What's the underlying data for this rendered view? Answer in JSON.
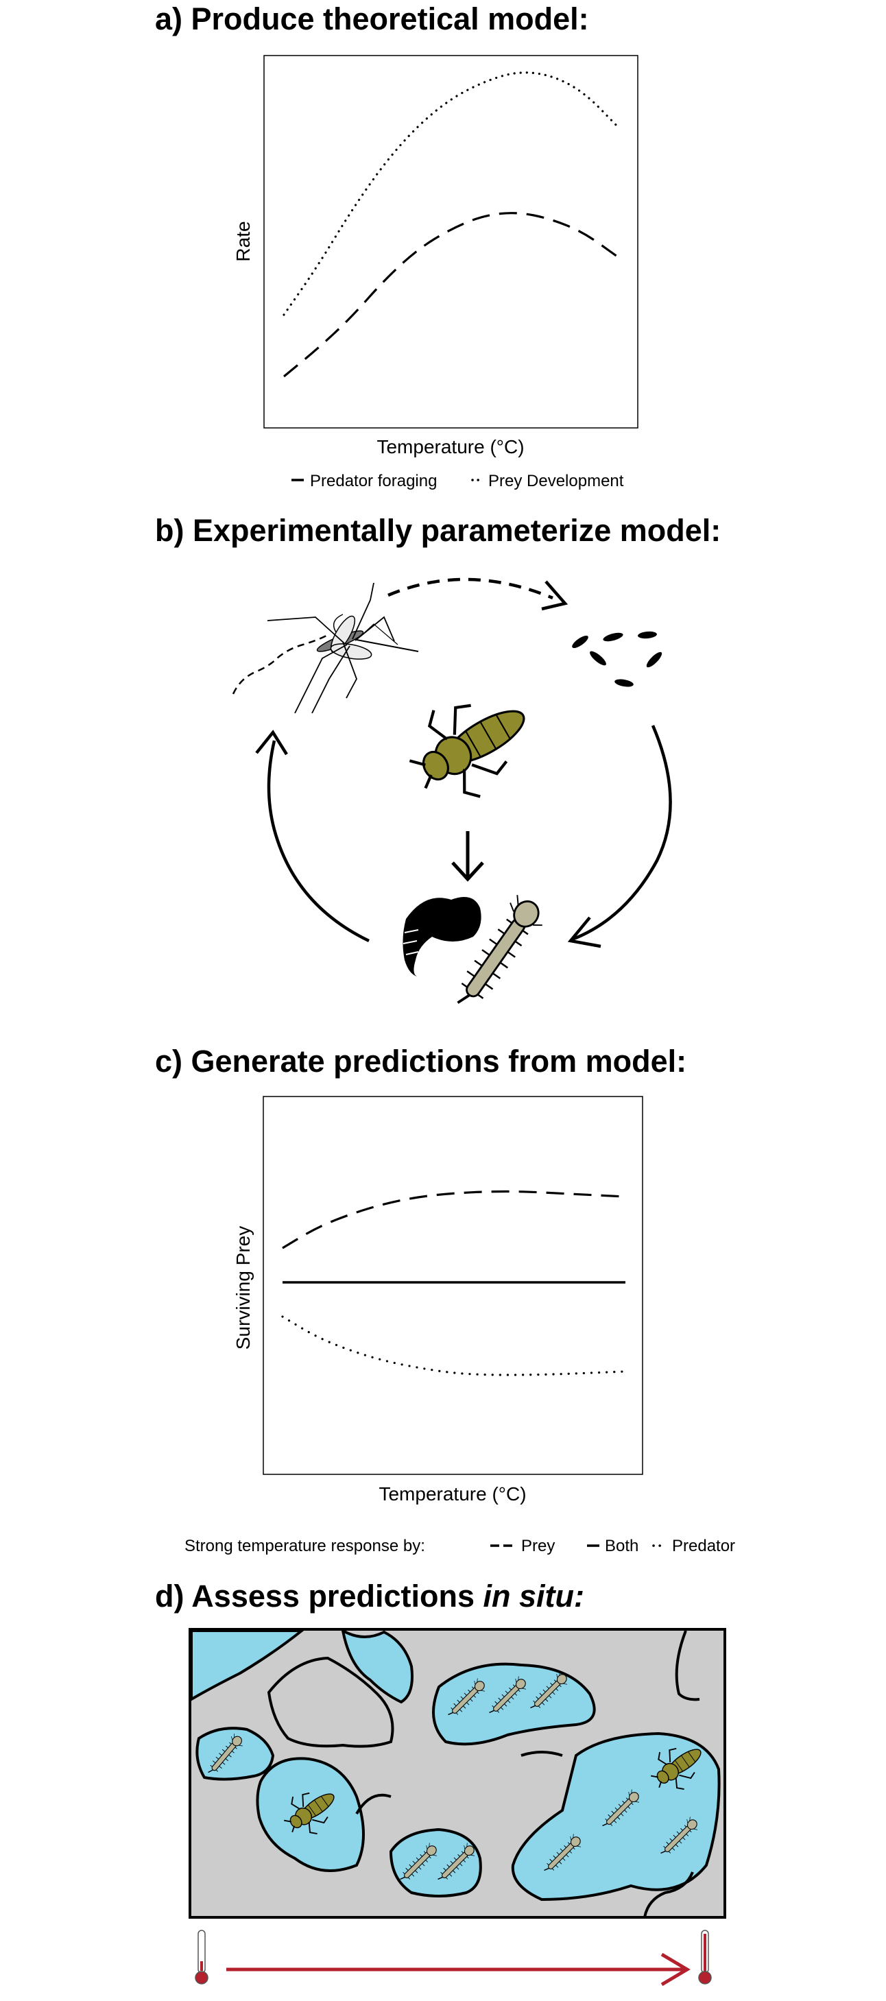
{
  "panel_a": {
    "heading": "a) Produce theoretical model:",
    "chart_data": {
      "type": "line",
      "xlabel": "Temperature (°C)",
      "ylabel": "Rate",
      "series": [
        {
          "name": "Predator foraging",
          "style": "dashed",
          "x": [
            0,
            1,
            2,
            3,
            4,
            5,
            6,
            7,
            8,
            9,
            10
          ],
          "values": [
            0.1,
            0.18,
            0.27,
            0.38,
            0.47,
            0.53,
            0.57,
            0.58,
            0.56,
            0.52,
            0.45
          ]
        },
        {
          "name": "Prey Development",
          "style": "dotted",
          "x": [
            0,
            1,
            2,
            3,
            4,
            5,
            6,
            7,
            8,
            9,
            10
          ],
          "values": [
            0.28,
            0.42,
            0.58,
            0.72,
            0.83,
            0.91,
            0.96,
            0.99,
            0.98,
            0.93,
            0.83
          ]
        }
      ],
      "legend": [
        "Predator foraging",
        "Prey Development"
      ],
      "legend_placement": "bottom"
    }
  },
  "panel_b": {
    "heading": "b) Experimentally parameterize model:",
    "organisms": [
      "mosquito-adult",
      "mosquito-eggs",
      "dragonfly-nymph",
      "mosquito-pupa",
      "mosquito-larva"
    ],
    "colors": {
      "nymph": "#8f8b2c",
      "larva": "#b9b69a"
    }
  },
  "panel_c": {
    "heading": "c) Generate predictions from model:",
    "chart_data": {
      "type": "line",
      "xlabel": "Temperature (°C)",
      "ylabel": "Surviving Prey",
      "series": [
        {
          "name": "Prey",
          "style": "dashed",
          "x": [
            0,
            1,
            2,
            3,
            4,
            5,
            6,
            7,
            8,
            9,
            10
          ],
          "values": [
            0.6,
            0.66,
            0.7,
            0.73,
            0.75,
            0.76,
            0.765,
            0.765,
            0.76,
            0.755,
            0.75
          ]
        },
        {
          "name": "Both",
          "style": "solid",
          "x": [
            0,
            10
          ],
          "values": [
            0.5,
            0.5
          ]
        },
        {
          "name": "Predator",
          "style": "dotted",
          "x": [
            0,
            1,
            2,
            3,
            4,
            5,
            6,
            7,
            8,
            9,
            10
          ],
          "values": [
            0.4,
            0.34,
            0.3,
            0.27,
            0.25,
            0.235,
            0.23,
            0.23,
            0.232,
            0.236,
            0.24
          ]
        }
      ],
      "legend_title": "Strong temperature response by:",
      "legend": [
        "Prey",
        "Both",
        "Predator"
      ],
      "legend_placement": "bottom"
    }
  },
  "panel_d": {
    "heading_prefix": "d) Assess predictions ",
    "heading_italic": "in situ:",
    "colors": {
      "water": "#8dd6ea",
      "ground": "#cccccc",
      "gradient_arrow": "#b3202e"
    }
  }
}
